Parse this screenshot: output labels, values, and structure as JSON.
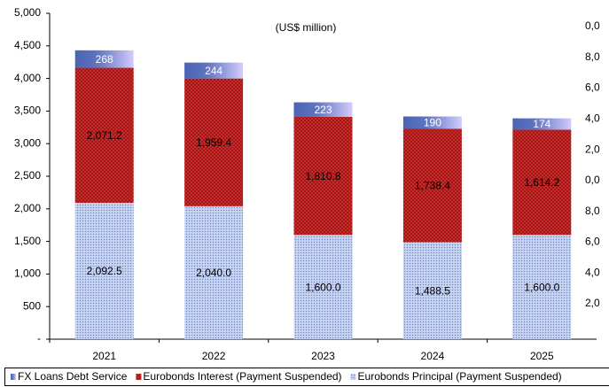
{
  "chart_data": {
    "type": "bar",
    "stacked": true,
    "title": "(US$ million)",
    "categories": [
      "2021",
      "2022",
      "2023",
      "2024",
      "2025"
    ],
    "series": [
      {
        "name": "FX Loans Debt Service",
        "color": "#4a63b5",
        "values": [
          268,
          244,
          223,
          190,
          174
        ],
        "value_labels": [
          "268",
          "244",
          "223",
          "190",
          "174"
        ]
      },
      {
        "name": "Eurobonds Interest (Payment Suspended)",
        "color": "#d42a2a",
        "values": [
          2071.2,
          1959.4,
          1810.8,
          1738.4,
          1614.2
        ],
        "value_labels": [
          "2,071.2",
          "1,959.4",
          "1,810.8",
          "1,738.4",
          "1,614.2"
        ]
      },
      {
        "name": "Eurobonds Principal (Payment Suspended)",
        "color": "#b9c9ec",
        "values": [
          2092.5,
          2040.0,
          1600.0,
          1488.5,
          1600.0
        ],
        "value_labels": [
          "2,092.5",
          "2,040.0",
          "1,600.0",
          "1,488.5",
          "1,600.0"
        ]
      }
    ],
    "ylim": [
      0,
      5000
    ],
    "yticks": [
      {
        "value": 0,
        "label": "-"
      },
      500,
      {
        "value": 1000,
        "label": "1,000"
      },
      {
        "value": 1500,
        "label": "1,500"
      },
      {
        "value": 2000,
        "label": "2,000"
      },
      {
        "value": 2500,
        "label": "2,500"
      },
      {
        "value": 3000,
        "label": "3,000"
      },
      {
        "value": 3500,
        "label": "3,500"
      },
      {
        "value": 4000,
        "label": "4,000"
      },
      {
        "value": 4500,
        "label": "4,500"
      },
      {
        "value": 5000,
        "label": "5,000"
      }
    ],
    "right_axis_labels": [
      "0,0",
      "8,0",
      "6,0",
      "4,0",
      "2,0",
      "0,0",
      "8,0",
      "6,0",
      "4,0",
      "2,0"
    ],
    "grid": false,
    "legend": "bottom"
  }
}
